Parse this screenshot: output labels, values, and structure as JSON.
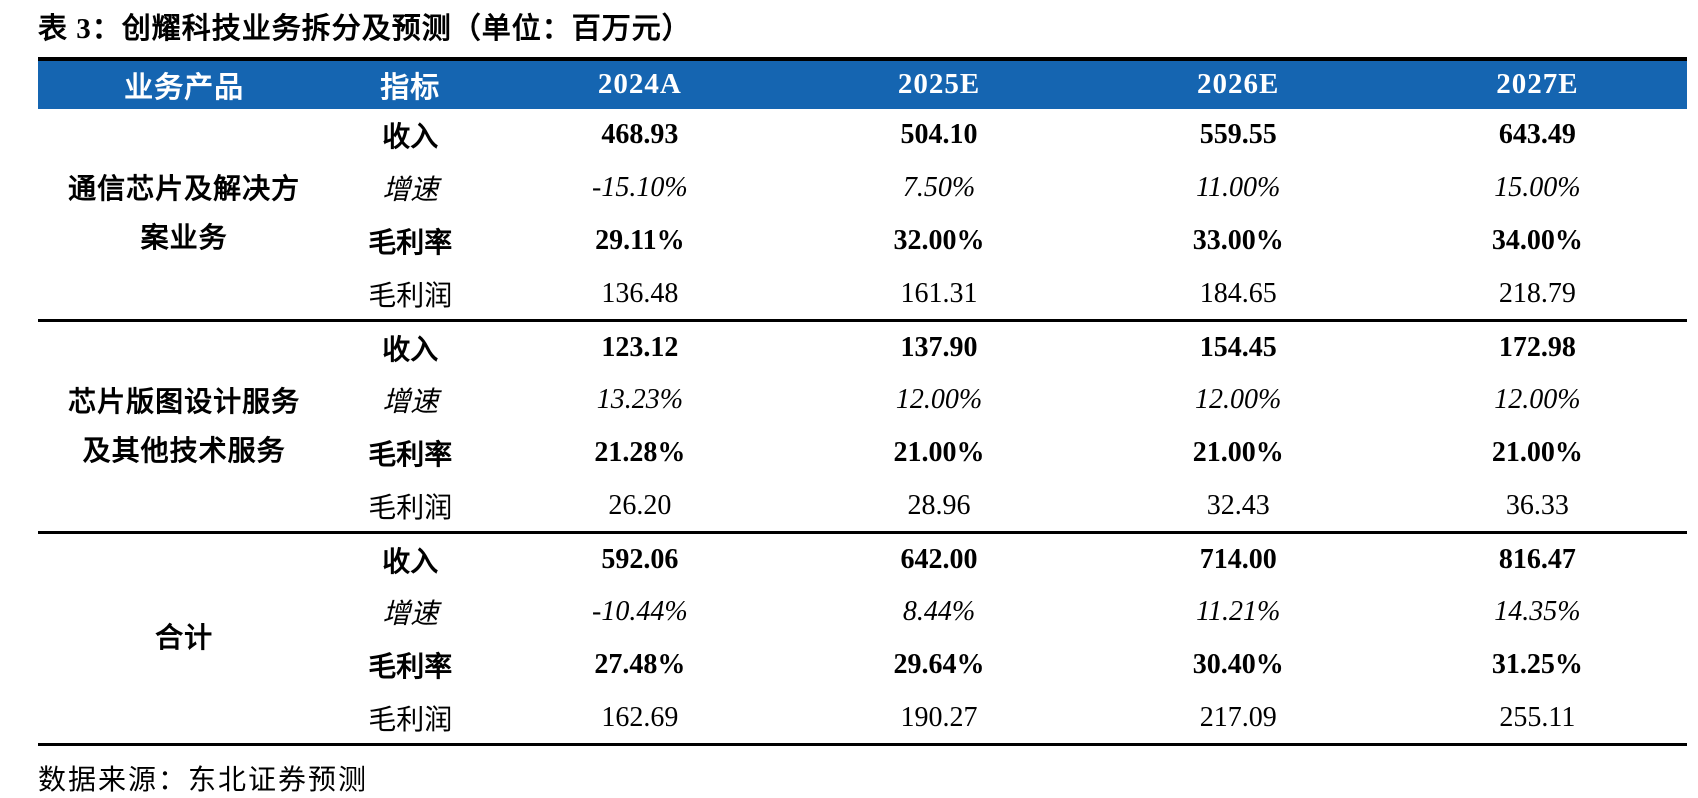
{
  "title": "表 3：创耀科技业务拆分及预测（单位：百万元）",
  "colors": {
    "header_bg": "#1565b1",
    "header_text": "#ffffff",
    "body_text": "#000000"
  },
  "table": {
    "columns": [
      "业务产品",
      "指标",
      "2024A",
      "2025E",
      "2026E",
      "2027E"
    ],
    "groups": [
      {
        "product": "通信芯片及解决方案业务",
        "rows": [
          {
            "metric": "收入",
            "values": [
              "468.93",
              "504.10",
              "559.55",
              "643.49"
            ]
          },
          {
            "metric": "增速",
            "values": [
              "-15.10%",
              "7.50%",
              "11.00%",
              "15.00%"
            ]
          },
          {
            "metric": "毛利率",
            "values": [
              "29.11%",
              "32.00%",
              "33.00%",
              "34.00%"
            ]
          },
          {
            "metric": "毛利润",
            "values": [
              "136.48",
              "161.31",
              "184.65",
              "218.79"
            ]
          }
        ]
      },
      {
        "product": "芯片版图设计服务及其他技术服务",
        "rows": [
          {
            "metric": "收入",
            "values": [
              "123.12",
              "137.90",
              "154.45",
              "172.98"
            ]
          },
          {
            "metric": "增速",
            "values": [
              "13.23%",
              "12.00%",
              "12.00%",
              "12.00%"
            ]
          },
          {
            "metric": "毛利率",
            "values": [
              "21.28%",
              "21.00%",
              "21.00%",
              "21.00%"
            ]
          },
          {
            "metric": "毛利润",
            "values": [
              "26.20",
              "28.96",
              "32.43",
              "36.33"
            ]
          }
        ]
      },
      {
        "product": "合计",
        "rows": [
          {
            "metric": "收入",
            "values": [
              "592.06",
              "642.00",
              "714.00",
              "816.47"
            ]
          },
          {
            "metric": "增速",
            "values": [
              "-10.44%",
              "8.44%",
              "11.21%",
              "14.35%"
            ]
          },
          {
            "metric": "毛利率",
            "values": [
              "27.48%",
              "29.64%",
              "30.40%",
              "31.25%"
            ]
          },
          {
            "metric": "毛利润",
            "values": [
              "162.69",
              "190.27",
              "217.09",
              "255.11"
            ]
          }
        ]
      }
    ]
  },
  "footer": {
    "source": "数据来源：东北证券预测"
  }
}
